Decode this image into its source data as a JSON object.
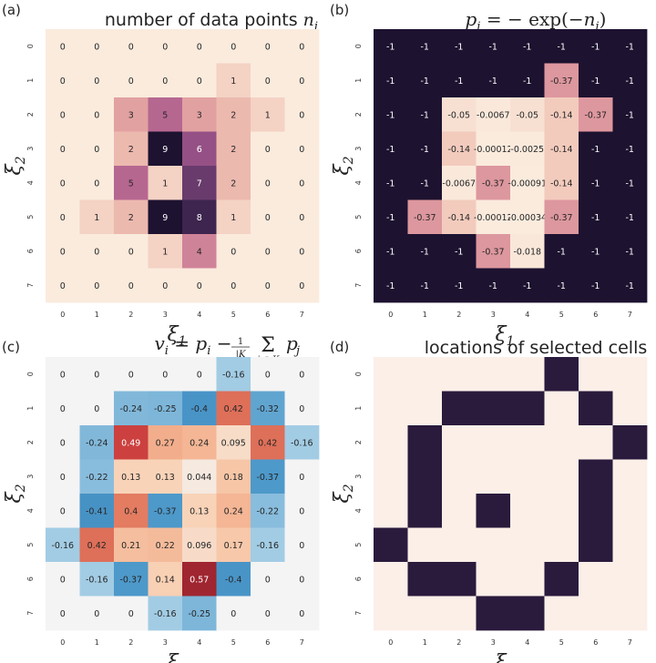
{
  "chart_data": [
    {
      "type": "heatmap",
      "panel_label": "(a)",
      "title": "number of data points n",
      "title_sub": "i",
      "xlabel": "ξ",
      "xlabel_sub": "1",
      "ylabel": "ξ",
      "ylabel_sub": "2",
      "x_ticks": [
        "0",
        "1",
        "2",
        "3",
        "4",
        "5",
        "6",
        "7"
      ],
      "y_ticks": [
        "0",
        "1",
        "2",
        "3",
        "4",
        "5",
        "6",
        "7"
      ],
      "colormap": "rocket_r",
      "vmin": 0,
      "vmax": 9,
      "show_values": true,
      "values": [
        [
          0,
          0,
          0,
          0,
          0,
          0,
          0,
          0
        ],
        [
          0,
          0,
          0,
          0,
          0,
          1,
          0,
          0
        ],
        [
          0,
          0,
          3,
          5,
          3,
          2,
          1,
          0
        ],
        [
          0,
          0,
          2,
          9,
          6,
          2,
          0,
          0
        ],
        [
          0,
          0,
          5,
          1,
          7,
          2,
          0,
          0
        ],
        [
          0,
          1,
          2,
          9,
          8,
          1,
          0,
          0
        ],
        [
          0,
          0,
          0,
          1,
          4,
          0,
          0,
          0
        ],
        [
          0,
          0,
          0,
          0,
          0,
          0,
          0,
          0
        ]
      ],
      "labels": [
        [
          "0",
          "0",
          "0",
          "0",
          "0",
          "0",
          "0",
          "0"
        ],
        [
          "0",
          "0",
          "0",
          "0",
          "0",
          "1",
          "0",
          "0"
        ],
        [
          "0",
          "0",
          "3",
          "5",
          "3",
          "2",
          "1",
          "0"
        ],
        [
          "0",
          "0",
          "2",
          "9",
          "6",
          "2",
          "0",
          "0"
        ],
        [
          "0",
          "0",
          "5",
          "1",
          "7",
          "2",
          "0",
          "0"
        ],
        [
          "0",
          "1",
          "2",
          "9",
          "8",
          "1",
          "0",
          "0"
        ],
        [
          "0",
          "0",
          "0",
          "1",
          "4",
          "0",
          "0",
          "0"
        ],
        [
          "0",
          "0",
          "0",
          "0",
          "0",
          "0",
          "0",
          "0"
        ]
      ]
    },
    {
      "type": "heatmap",
      "panel_label": "(b)",
      "title": "p_i = − exp(−n_i)",
      "xlabel": "ξ",
      "xlabel_sub": "1",
      "ylabel": "ξ",
      "ylabel_sub": "2",
      "x_ticks": [
        "0",
        "1",
        "2",
        "3",
        "4",
        "5",
        "6",
        "7"
      ],
      "y_ticks": [
        "0",
        "1",
        "2",
        "3",
        "4",
        "5",
        "6",
        "7"
      ],
      "colormap": "rocket",
      "vmin": -1,
      "vmax": 0,
      "show_values": true,
      "values": [
        [
          -1,
          -1,
          -1,
          -1,
          -1,
          -1,
          -1,
          -1
        ],
        [
          -1,
          -1,
          -1,
          -1,
          -1,
          -0.37,
          -1,
          -1
        ],
        [
          -1,
          -1,
          -0.05,
          -0.0067,
          -0.05,
          -0.14,
          -0.37,
          -1
        ],
        [
          -1,
          -1,
          -0.14,
          -0.00012,
          -0.0025,
          -0.14,
          -1,
          -1
        ],
        [
          -1,
          -1,
          -0.0067,
          -0.37,
          -0.00091,
          -0.14,
          -1,
          -1
        ],
        [
          -1,
          -0.37,
          -0.14,
          -0.00012,
          -0.00034,
          -0.37,
          -1,
          -1
        ],
        [
          -1,
          -1,
          -1,
          -0.37,
          -0.018,
          -1,
          -1,
          -1
        ],
        [
          -1,
          -1,
          -1,
          -1,
          -1,
          -1,
          -1,
          -1
        ]
      ],
      "labels": [
        [
          "-1",
          "-1",
          "-1",
          "-1",
          "-1",
          "-1",
          "-1",
          "-1"
        ],
        [
          "-1",
          "-1",
          "-1",
          "-1",
          "-1",
          "-0.37",
          "-1",
          "-1"
        ],
        [
          "-1",
          "-1",
          "-0.05",
          "-0.0067",
          "-0.05",
          "-0.14",
          "-0.37",
          "-1"
        ],
        [
          "-1",
          "-1",
          "-0.14",
          "-0.00012",
          "-0.0025",
          "-0.14",
          "-1",
          "-1"
        ],
        [
          "-1",
          "-1",
          "-0.0067",
          "-0.37",
          "-0.00091",
          "-0.14",
          "-1",
          "-1"
        ],
        [
          "-1",
          "-0.37",
          "-0.14",
          "-0.00012",
          "-0.00034",
          "-0.37",
          "-1",
          "-1"
        ],
        [
          "-1",
          "-1",
          "-1",
          "-0.37",
          "-0.018",
          "-1",
          "-1",
          "-1"
        ],
        [
          "-1",
          "-1",
          "-1",
          "-1",
          "-1",
          "-1",
          "-1",
          "-1"
        ]
      ]
    },
    {
      "type": "heatmap",
      "panel_label": "(c)",
      "title": "v_i = p_i − (1/|K_i|) Σ_{j ∈ K_i} p_j",
      "xlabel": "ξ",
      "xlabel_sub": "1",
      "ylabel": "ξ",
      "ylabel_sub": "2",
      "x_ticks": [
        "0",
        "1",
        "2",
        "3",
        "4",
        "5",
        "6",
        "7"
      ],
      "y_ticks": [
        "0",
        "1",
        "2",
        "3",
        "4",
        "5",
        "6",
        "7"
      ],
      "colormap": "RdBu_r",
      "vmin": -0.6,
      "vmax": 0.6,
      "show_values": true,
      "values": [
        [
          0,
          0,
          0,
          0,
          0,
          -0.16,
          0,
          0
        ],
        [
          0,
          0,
          -0.24,
          -0.25,
          -0.4,
          0.42,
          -0.32,
          0
        ],
        [
          0,
          -0.24,
          0.49,
          0.27,
          0.24,
          0.095,
          0.42,
          -0.16
        ],
        [
          0,
          -0.22,
          0.13,
          0.13,
          0.044,
          0.18,
          -0.37,
          0
        ],
        [
          0,
          -0.41,
          0.4,
          -0.37,
          0.13,
          0.24,
          -0.22,
          0
        ],
        [
          -0.16,
          0.42,
          0.21,
          0.22,
          0.096,
          0.17,
          -0.16,
          0
        ],
        [
          0,
          -0.16,
          -0.37,
          0.14,
          0.57,
          -0.4,
          0,
          0
        ],
        [
          0,
          0,
          0,
          -0.16,
          -0.25,
          0,
          0,
          0
        ]
      ],
      "labels": [
        [
          "0",
          "0",
          "0",
          "0",
          "0",
          "-0.16",
          "0",
          "0"
        ],
        [
          "0",
          "0",
          "-0.24",
          "-0.25",
          "-0.4",
          "0.42",
          "-0.32",
          "0"
        ],
        [
          "0",
          "-0.24",
          "0.49",
          "0.27",
          "0.24",
          "0.095",
          "0.42",
          "-0.16"
        ],
        [
          "0",
          "-0.22",
          "0.13",
          "0.13",
          "0.044",
          "0.18",
          "-0.37",
          "0"
        ],
        [
          "0",
          "-0.41",
          "0.4",
          "-0.37",
          "0.13",
          "0.24",
          "-0.22",
          "0"
        ],
        [
          "-0.16",
          "0.42",
          "0.21",
          "0.22",
          "0.096",
          "0.17",
          "-0.16",
          "0"
        ],
        [
          "0",
          "-0.16",
          "-0.37",
          "0.14",
          "0.57",
          "-0.4",
          "0",
          "0"
        ],
        [
          "0",
          "0",
          "0",
          "-0.16",
          "-0.25",
          "0",
          "0",
          "0"
        ]
      ]
    },
    {
      "type": "heatmap",
      "panel_label": "(d)",
      "title": "locations of selected cells",
      "xlabel": "ξ",
      "xlabel_sub": "1",
      "ylabel": "ξ",
      "ylabel_sub": "2",
      "x_ticks": [
        "0",
        "1",
        "2",
        "3",
        "4",
        "5",
        "6",
        "7"
      ],
      "y_ticks": [
        "0",
        "1",
        "2",
        "3",
        "4",
        "5",
        "6",
        "7"
      ],
      "colormap": "binary_rocket",
      "vmin": 0,
      "vmax": 1,
      "show_values": false,
      "values": [
        [
          0,
          0,
          0,
          0,
          0,
          1,
          0,
          0
        ],
        [
          0,
          0,
          1,
          1,
          1,
          0,
          1,
          0
        ],
        [
          0,
          1,
          0,
          0,
          0,
          0,
          0,
          1
        ],
        [
          0,
          1,
          0,
          0,
          0,
          0,
          1,
          0
        ],
        [
          0,
          1,
          0,
          1,
          0,
          0,
          1,
          0
        ],
        [
          1,
          0,
          0,
          0,
          0,
          0,
          1,
          0
        ],
        [
          0,
          1,
          1,
          0,
          0,
          1,
          0,
          0
        ],
        [
          0,
          0,
          0,
          1,
          1,
          0,
          0,
          0
        ]
      ]
    }
  ]
}
